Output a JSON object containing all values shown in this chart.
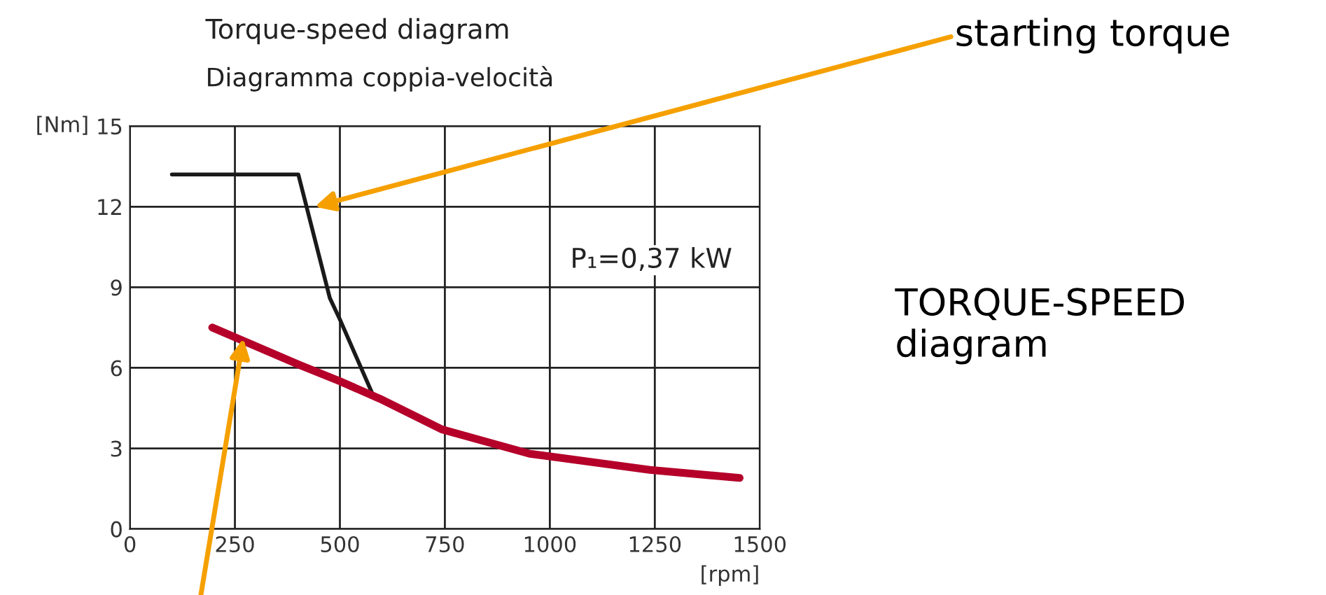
{
  "chart_data": {
    "type": "line",
    "title": "Torque-speed diagram",
    "subtitle": "Diagramma coppia-velocità",
    "xlabel": "[rpm]",
    "ylabel": "[Nm]",
    "series": [
      {
        "color": "#1a1a1a",
        "x": [
          100,
          401,
          476,
          500,
          577
        ],
        "values": [
          13.2,
          13.2,
          8.6,
          7.8,
          5.05
        ]
      },
      {
        "color": "#b5002a",
        "x": [
          196,
          405,
          500,
          595,
          744,
          952,
          1000,
          1238,
          1452
        ],
        "values": [
          7.5,
          6.1,
          5.5,
          4.85,
          3.7,
          2.8,
          2.7,
          2.2,
          1.9
        ]
      }
    ],
    "xlim": [
      0,
      1500
    ],
    "xticks": [
      0,
      250,
      500,
      750,
      1000,
      1250,
      1500
    ],
    "ylim": [
      0,
      15
    ],
    "yticks": [
      0,
      3,
      6,
      9,
      12,
      15
    ],
    "grid": true,
    "marker": "none",
    "line_style": "solid",
    "annotations": [
      {
        "text": "starting torque",
        "x": 440,
        "y": 12.0
      },
      "P₁=0,37 kW",
      "TORQUE-SPEED diagram"
    ]
  }
}
